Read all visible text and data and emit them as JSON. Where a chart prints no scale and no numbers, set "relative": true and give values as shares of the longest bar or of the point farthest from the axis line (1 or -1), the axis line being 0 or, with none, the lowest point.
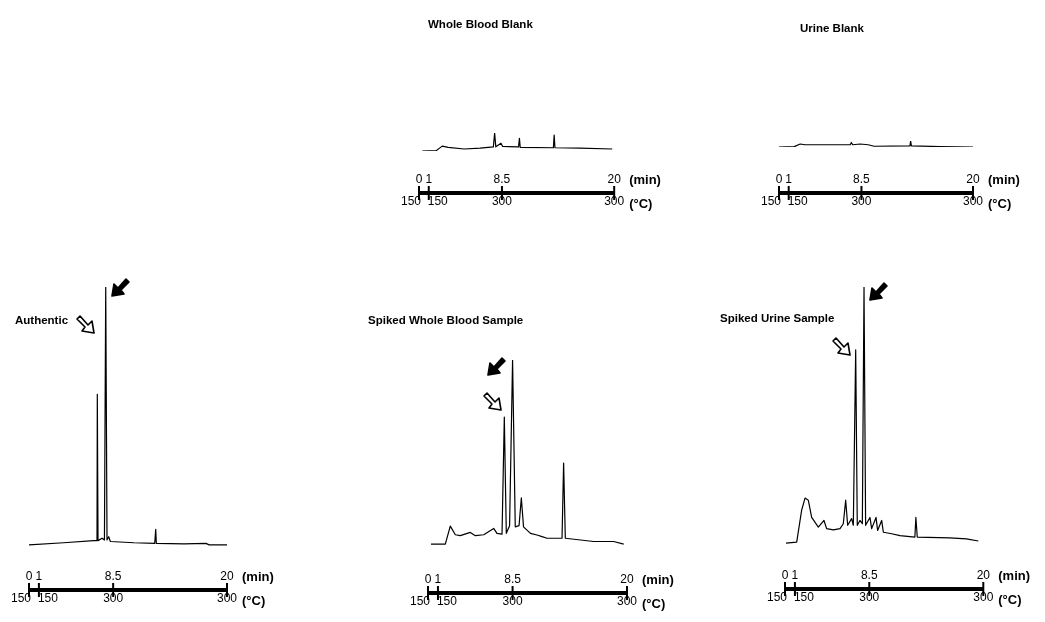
{
  "chart_data": [
    {
      "type": "line",
      "title": "Whole Blood Blank",
      "xlabel": "(min)",
      "relative": true,
      "xlim": [
        0,
        20
      ],
      "xticks": [
        0,
        1,
        8.5,
        20
      ],
      "annotations": [
        "150",
        "150",
        "300",
        "300",
        "(°C)"
      ],
      "x": [
        0.33,
        1.76,
        2.38,
        3.0,
        4.63,
        6.27,
        7.62,
        7.75,
        7.87,
        8.4,
        8.57,
        10.2,
        10.29,
        10.37,
        13.77,
        13.85,
        13.93,
        16.5,
        19.8
      ],
      "series": [
        {
          "color": "#000000",
          "values": [
            0,
            0.02,
            0.27,
            0.2,
            0.11,
            0.16,
            0.23,
            1,
            0.23,
            0.43,
            0.25,
            0.23,
            0.7,
            0.2,
            0.18,
            0.89,
            0.18,
            0.16,
            0.11
          ]
        }
      ]
    },
    {
      "type": "line",
      "title": "Urine Blank",
      "xlabel": "(min)",
      "relative": true,
      "xlim": [
        0,
        20
      ],
      "xticks": [
        0,
        1,
        8.5,
        20
      ],
      "annotations": [
        "150",
        "150",
        "300",
        "300",
        "(°C)"
      ],
      "x": [
        0,
        1.57,
        2.19,
        2.68,
        5.48,
        7.34,
        7.46,
        7.59,
        8.37,
        9.2,
        9.8,
        13.5,
        13.57,
        13.65,
        16.6,
        20
      ],
      "series": [
        {
          "color": "#000000",
          "values": [
            0,
            0.06,
            0.5,
            0.375,
            0.375,
            0.375,
            0.75,
            0.375,
            0.5,
            0.375,
            0.125,
            0.19,
            1,
            0.19,
            0.06,
            0
          ]
        }
      ]
    },
    {
      "type": "line",
      "title": "Authentic",
      "xlabel": "(min)",
      "relative": true,
      "xlim": [
        0,
        20
      ],
      "xticks": [
        0,
        1,
        8.5,
        20
      ],
      "annotations": [
        "150",
        "150",
        "300",
        "300",
        "(°C)"
      ],
      "x": [
        0,
        3.5,
        6.53,
        6.87,
        6.9,
        6.97,
        7.38,
        7.62,
        7.75,
        7.88,
        8.05,
        8.22,
        10.6,
        12.7,
        12.8,
        12.86,
        15.67,
        17.87,
        18.2,
        20
      ],
      "series": [
        {
          "color": "#000000",
          "values": [
            0.149,
            0.156,
            0.163,
            0.163,
            0.646,
            0.163,
            0.171,
            0.165,
            1,
            0.165,
            0.176,
            0.16,
            0.156,
            0.154,
            0.2,
            0.154,
            0.152,
            0.154,
            0.149,
            0.149
          ]
        }
      ]
    },
    {
      "type": "line",
      "title": "Spiked Whole Blood Sample",
      "xlabel": "(min)",
      "relative": true,
      "xlim": [
        0,
        20
      ],
      "xticks": [
        0,
        1,
        8.5,
        20
      ],
      "annotations": [
        "150",
        "150",
        "300",
        "300",
        "(°C)"
      ],
      "x": [
        0.3,
        1.74,
        2.24,
        2.75,
        3.25,
        4.25,
        4.76,
        5.6,
        6.6,
        6.93,
        7.44,
        7.67,
        7.87,
        8.2,
        8.5,
        8.77,
        9.15,
        9.38,
        9.6,
        10.3,
        10.95,
        11.46,
        11.96,
        13.47,
        13.63,
        13.8,
        16.65,
        18.66,
        19.67
      ],
      "series": [
        {
          "color": "#000000",
          "values": [
            0.21,
            0.21,
            0.287,
            0.25,
            0.246,
            0.26,
            0.246,
            0.25,
            0.277,
            0.256,
            0.253,
            0.755,
            0.256,
            0.289,
            1,
            0.284,
            0.289,
            0.408,
            0.284,
            0.256,
            0.249,
            0.242,
            0.235,
            0.235,
            0.558,
            0.235,
            0.221,
            0.221,
            0.21
          ]
        }
      ]
    },
    {
      "type": "line",
      "title": "Spiked Urine Sample",
      "xlabel": "(min)",
      "relative": true,
      "xlim": [
        0,
        20
      ],
      "xticks": [
        0,
        1,
        8.5,
        20
      ],
      "annotations": [
        "150",
        "150",
        "300",
        "300",
        "(°C)"
      ],
      "x": [
        0.1,
        1.18,
        1.68,
        2.02,
        2.35,
        2.69,
        3.36,
        3.93,
        4.2,
        4.87,
        5.55,
        5.88,
        6.12,
        6.32,
        6.72,
        6.89,
        7.13,
        7.29,
        7.56,
        7.8,
        7.97,
        8.13,
        8.57,
        8.74,
        9.18,
        9.34,
        9.75,
        9.92,
        10.76,
        11.6,
        13.1,
        13.2,
        13.34,
        16.6,
        18.3,
        19.5
      ],
      "series": [
        {
          "color": "#000000",
          "values": [
            0.152,
            0.155,
            0.261,
            0.301,
            0.294,
            0.237,
            0.205,
            0.227,
            0.2,
            0.196,
            0.2,
            0.216,
            0.294,
            0.211,
            0.233,
            0.211,
            0.792,
            0.211,
            0.227,
            0.216,
            1,
            0.211,
            0.237,
            0.2,
            0.237,
            0.194,
            0.227,
            0.188,
            0.183,
            0.177,
            0.172,
            0.237,
            0.172,
            0.169,
            0.166,
            0.159
          ]
        }
      ]
    }
  ]
}
